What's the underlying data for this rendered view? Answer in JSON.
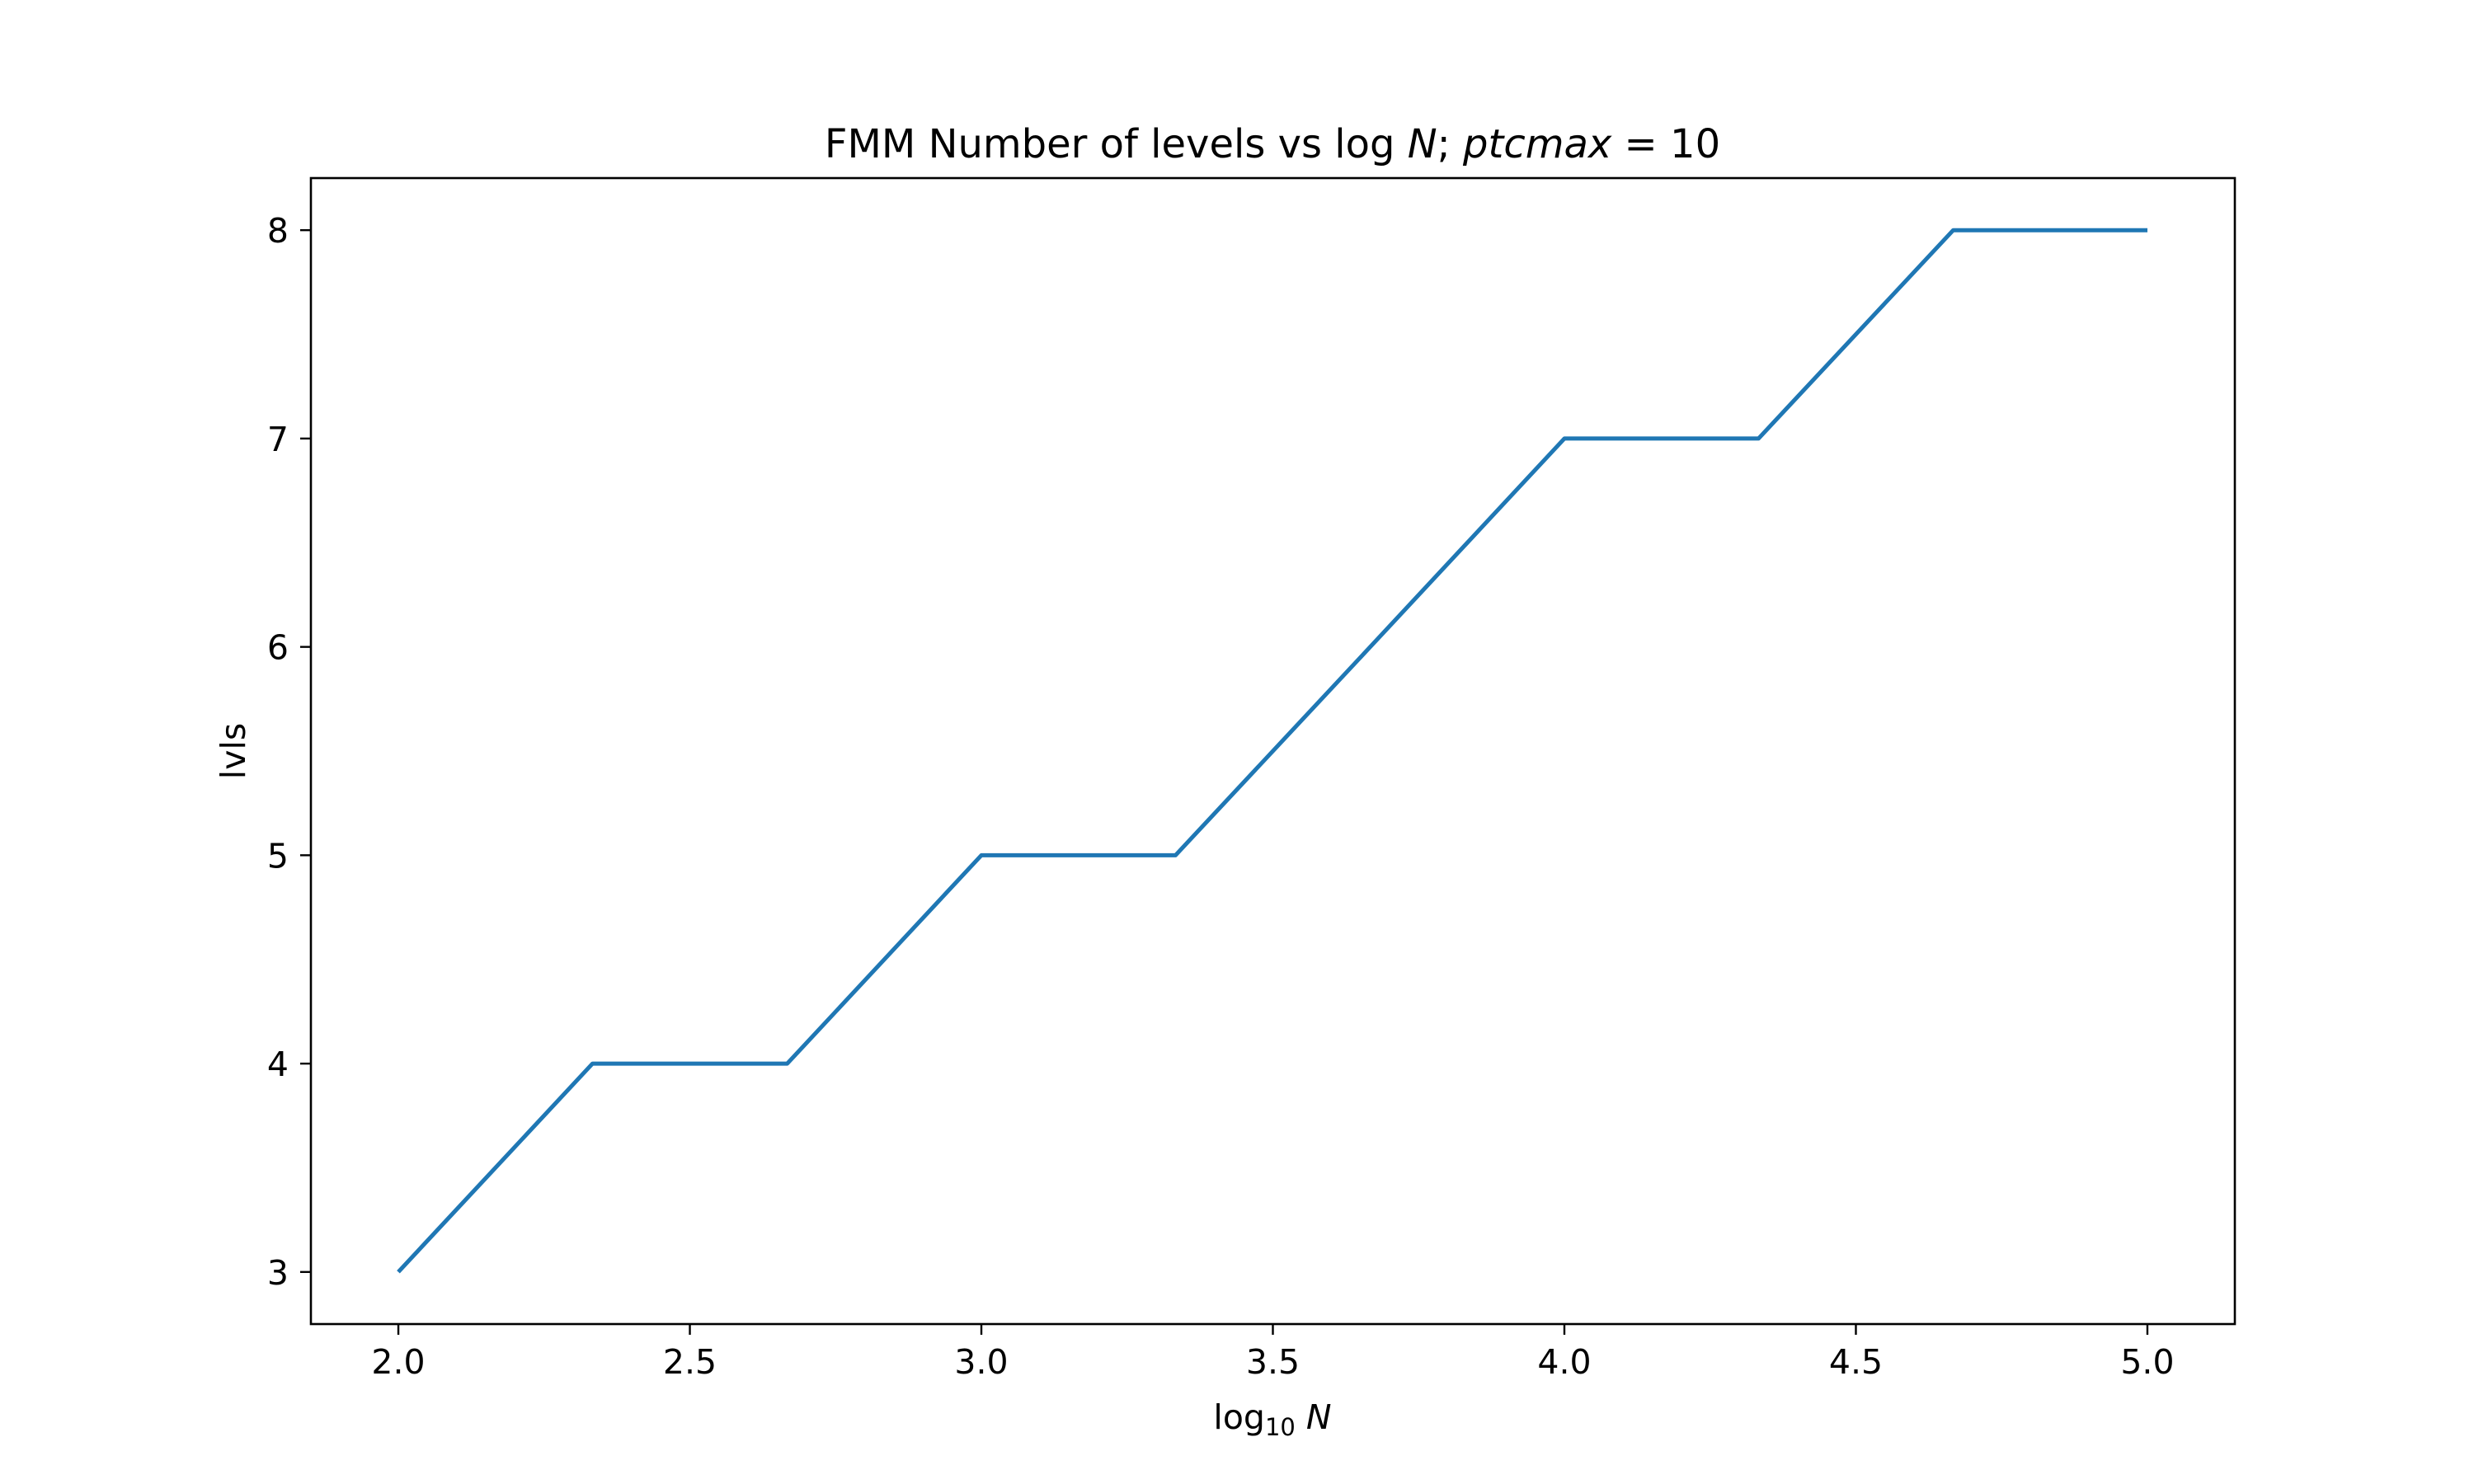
{
  "chart_data": {
    "type": "line",
    "title": {
      "prefix": "FMM Number of levels vs log ",
      "var": "N",
      "mid": "; ",
      "param": "ptcmax",
      "suffix": " = 10"
    },
    "xlabel": {
      "base": "log",
      "sub": "10",
      "var": "N"
    },
    "ylabel": "lvls",
    "xlim": [
      1.85,
      5.15
    ],
    "ylim": [
      2.75,
      8.25
    ],
    "xticks": [
      2.0,
      2.5,
      3.0,
      3.5,
      4.0,
      4.5,
      5.0
    ],
    "xtick_labels": [
      "2.0",
      "2.5",
      "3.0",
      "3.5",
      "4.0",
      "4.5",
      "5.0"
    ],
    "yticks": [
      3,
      4,
      5,
      6,
      7,
      8
    ],
    "ytick_labels": [
      "3",
      "4",
      "5",
      "6",
      "7",
      "8"
    ],
    "grid": false,
    "series": [
      {
        "color": "#1f77b4",
        "x": [
          2.0,
          2.333,
          2.667,
          3.0,
          3.333,
          3.667,
          4.0,
          4.333,
          4.667,
          5.0
        ],
        "y": [
          3,
          4,
          4,
          5,
          5,
          6,
          7,
          7,
          8,
          8
        ]
      }
    ]
  }
}
